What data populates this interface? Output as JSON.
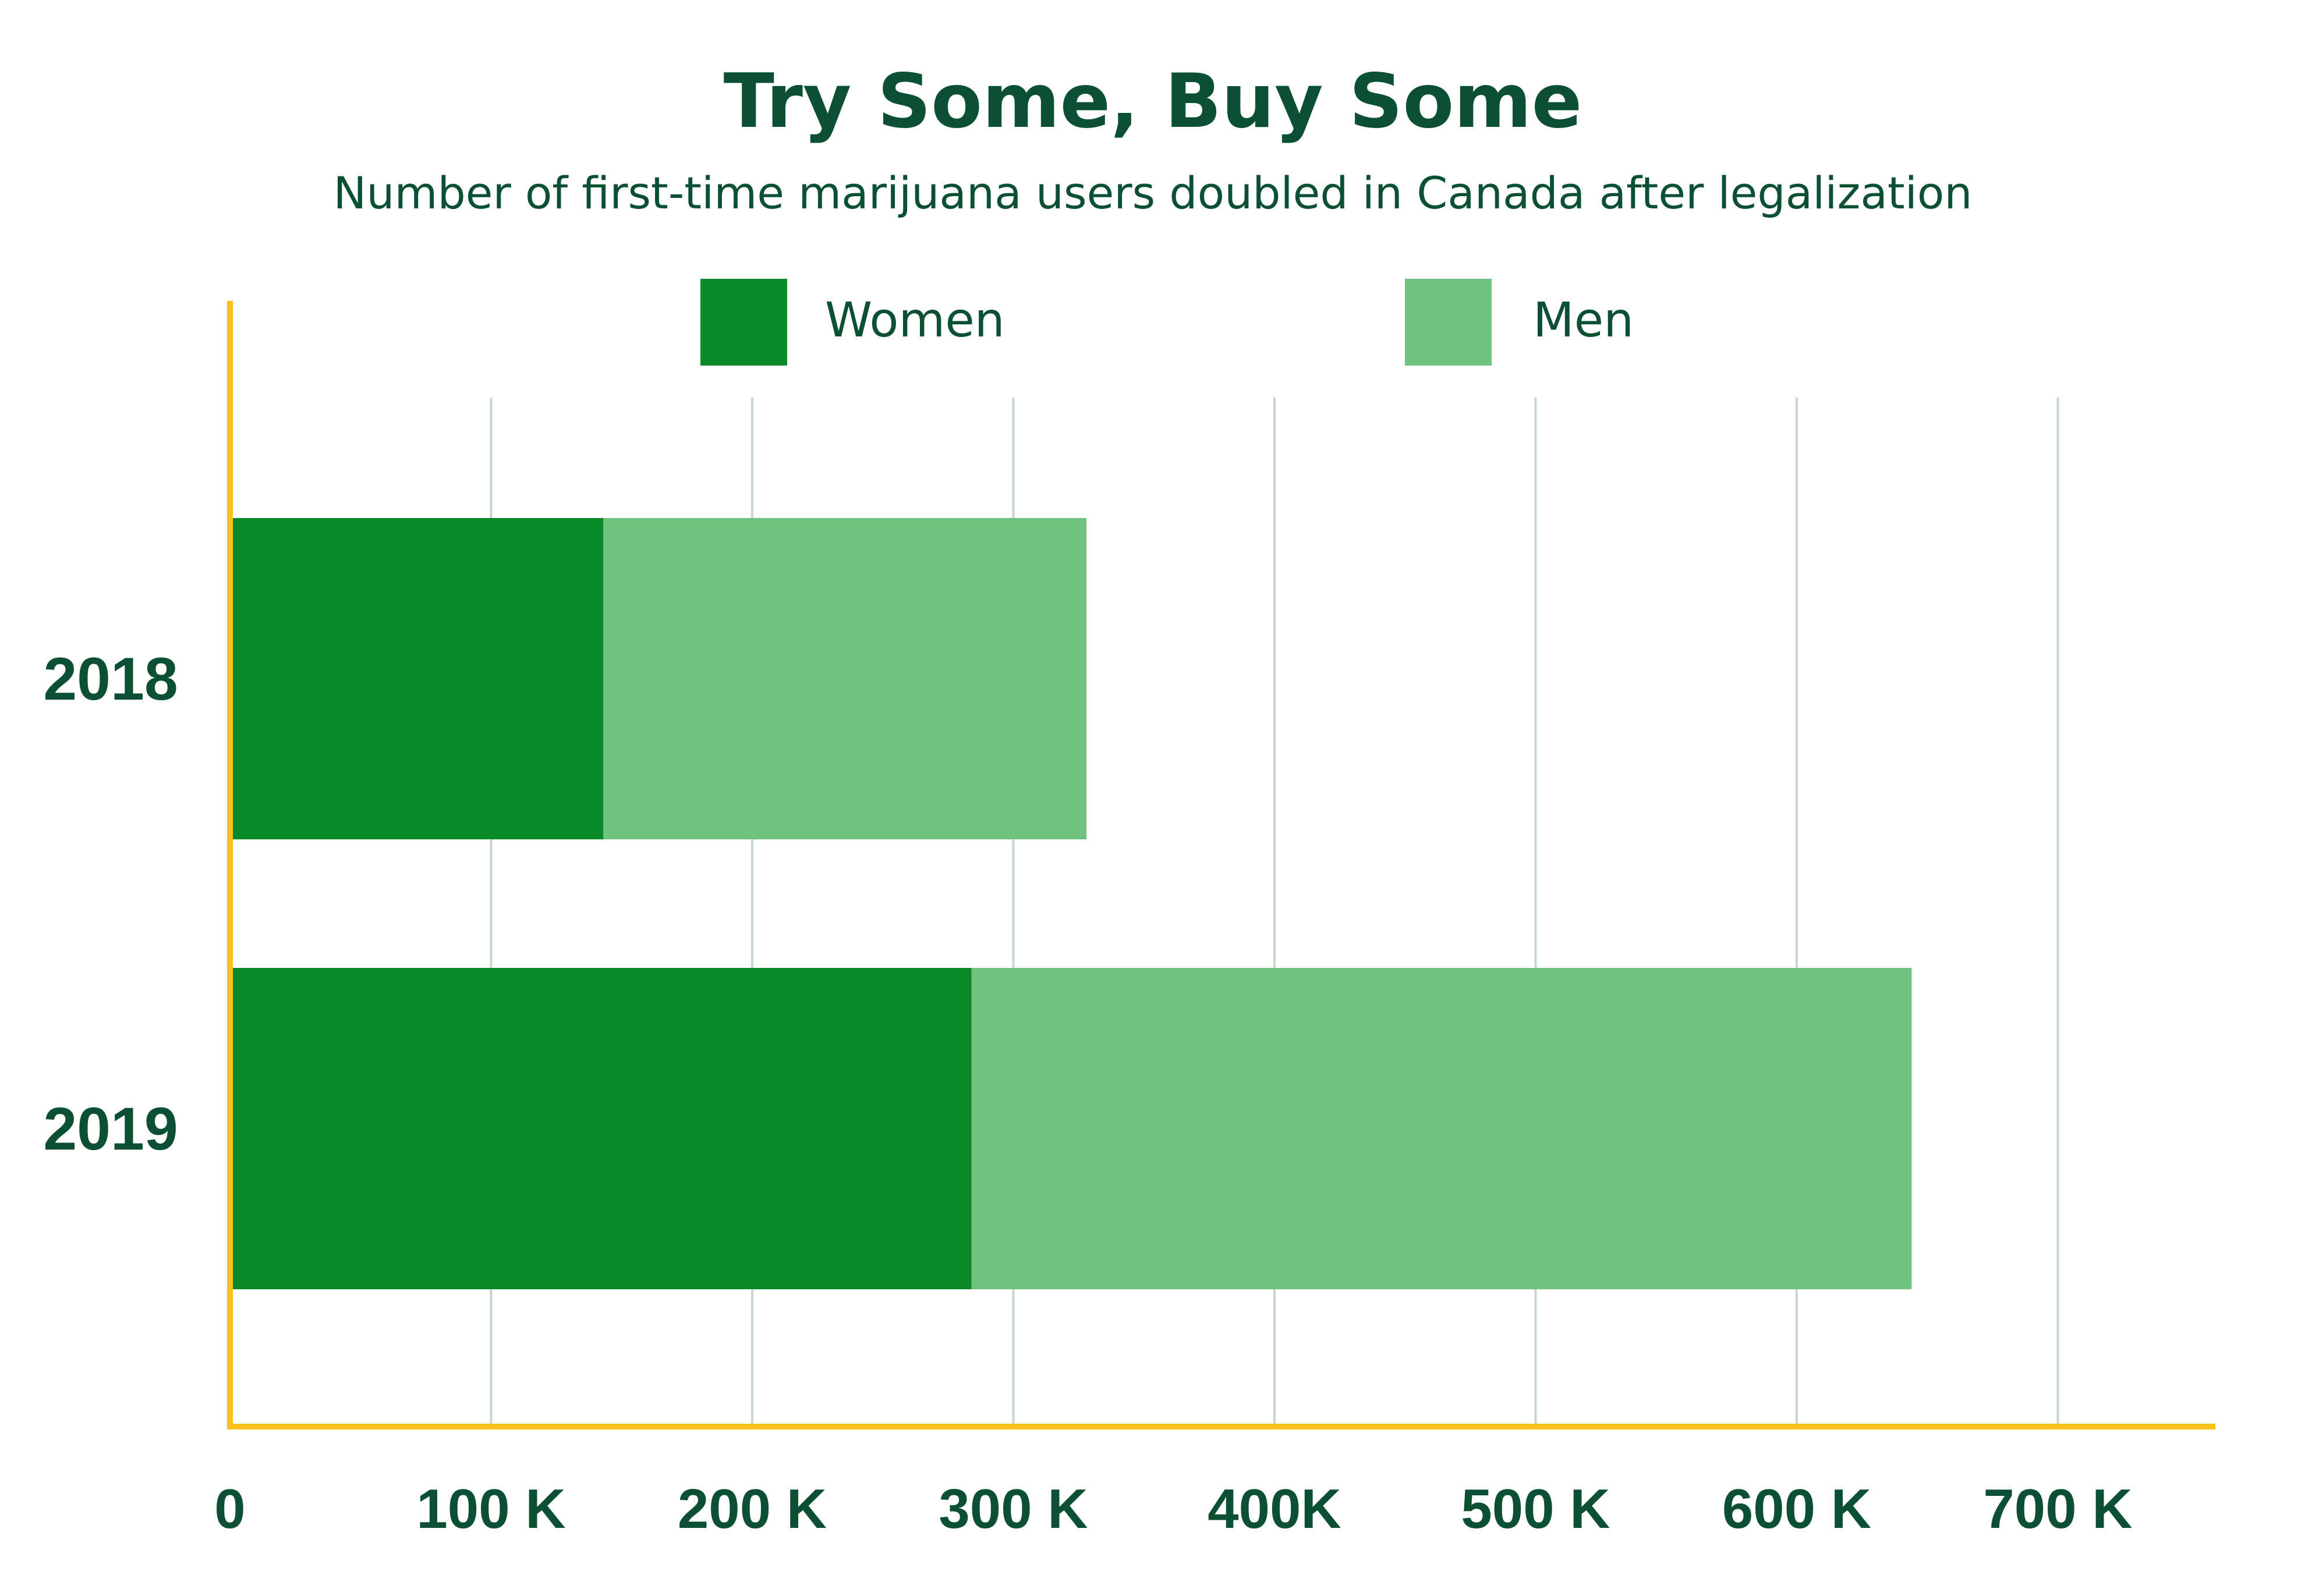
{
  "colors": {
    "text": "#0b5033",
    "axis": "#f7c21b",
    "grid": "#c4d9c6",
    "women": "#098a28",
    "men": "#6dc27e",
    "background": "#ffffff"
  },
  "chart_data": {
    "type": "bar",
    "orientation": "horizontal",
    "stacked": true,
    "title": "Try Some, Buy Some",
    "subtitle": "Number of first-time marijuana users doubled in Canada after legalization",
    "categories": [
      "2018",
      "2019"
    ],
    "series": [
      {
        "name": "Women",
        "color_key": "women",
        "values": [
          143000,
          284000
        ]
      },
      {
        "name": "Men",
        "color_key": "men",
        "values": [
          185000,
          360000
        ]
      }
    ],
    "xlim": [
      0,
      765000
    ],
    "xticks": [
      0,
      100000,
      200000,
      300000,
      400000,
      500000,
      600000,
      700000
    ],
    "xtick_labels": [
      "0",
      "100 K",
      "200 K",
      "300 K",
      "400K",
      "500 K",
      "600 K",
      "700 K"
    ],
    "xlabel": "",
    "ylabel": "",
    "grid": true,
    "legend_position": "top-center"
  }
}
